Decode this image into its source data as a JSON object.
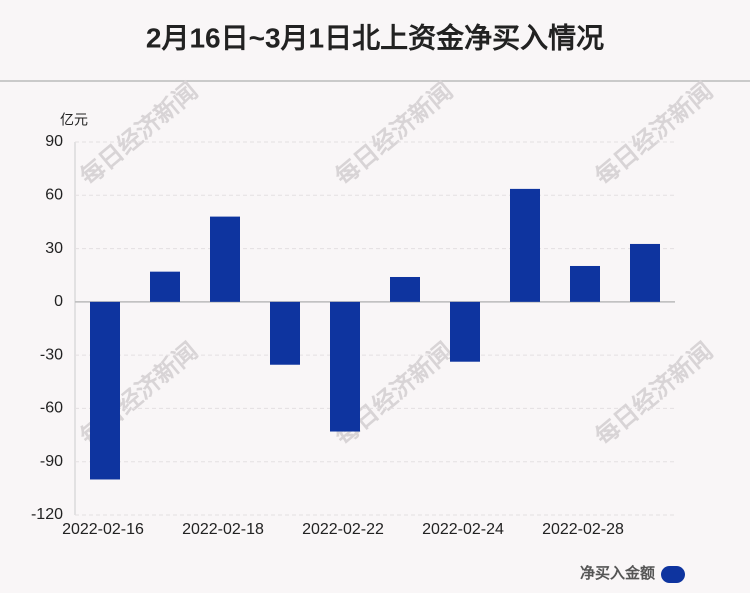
{
  "chart_data": {
    "type": "bar",
    "title": "2月16日~3月1日北上资金净买入情况",
    "y_label": "亿元",
    "watermark": "每日经济新闻",
    "categories": [
      "2022-02-16",
      null,
      "2022-02-18",
      null,
      "2022-02-22",
      null,
      "2022-02-24",
      null,
      "2022-02-28",
      null
    ],
    "series": [
      {
        "name": "净买入金额",
        "color": "#0e349f",
        "values": [
          -100,
          17,
          48,
          -35.4,
          -73,
          14,
          -33.7,
          63.6,
          20.2,
          32.6
        ]
      }
    ],
    "ylim": [
      -120,
      90
    ],
    "yticks": [
      -120,
      -90,
      -60,
      -30,
      0,
      30,
      60,
      90
    ],
    "grid": true
  }
}
